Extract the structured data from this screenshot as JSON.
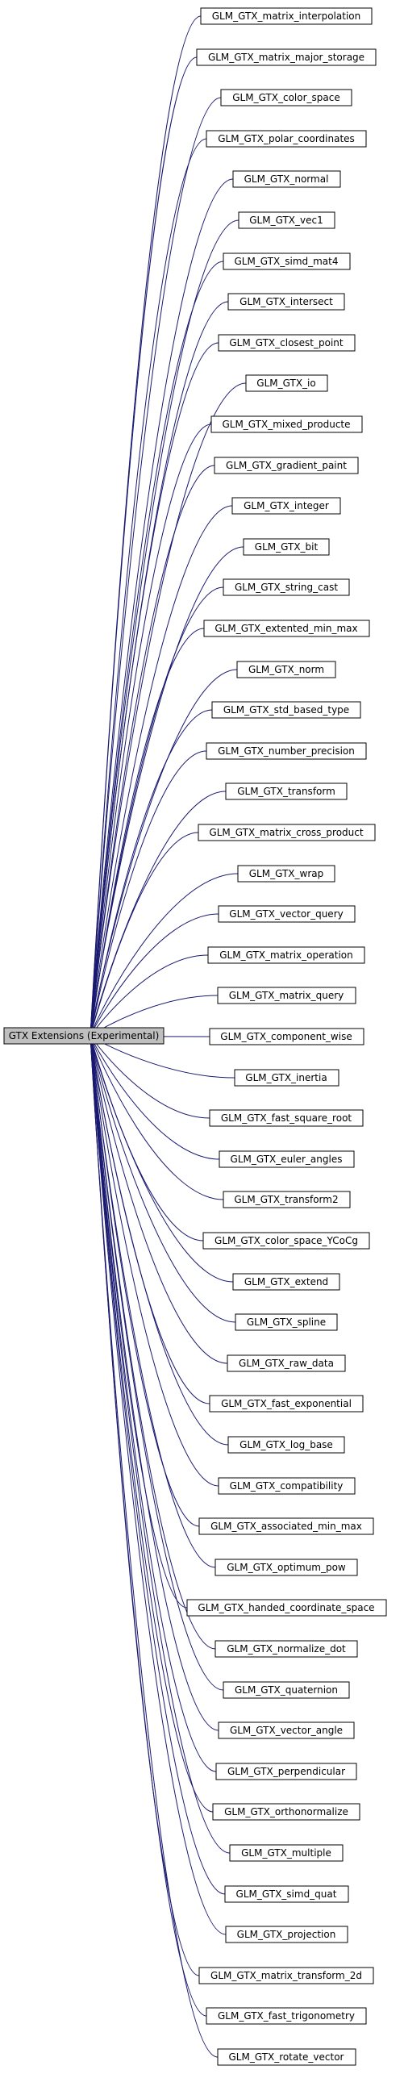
{
  "center": {
    "label": "GTX Extensions (Experimental)"
  },
  "colors": {
    "edge": "#191970",
    "arrow": "#191970",
    "center_fill": "#bfbfbf",
    "node_border": "#000000"
  },
  "nodes": [
    "GLM_GTX_matrix_interpolation",
    "GLM_GTX_matrix_major_storage",
    "GLM_GTX_color_space",
    "GLM_GTX_polar_coordinates",
    "GLM_GTX_normal",
    "GLM_GTX_vec1",
    "GLM_GTX_simd_mat4",
    "GLM_GTX_intersect",
    "GLM_GTX_closest_point",
    "GLM_GTX_io",
    "GLM_GTX_mixed_producte",
    "GLM_GTX_gradient_paint",
    "GLM_GTX_integer",
    "GLM_GTX_bit",
    "GLM_GTX_string_cast",
    "GLM_GTX_extented_min_max",
    "GLM_GTX_norm",
    "GLM_GTX_std_based_type",
    "GLM_GTX_number_precision",
    "GLM_GTX_transform",
    "GLM_GTX_matrix_cross_product",
    "GLM_GTX_wrap",
    "GLM_GTX_vector_query",
    "GLM_GTX_matrix_operation",
    "GLM_GTX_matrix_query",
    "GLM_GTX_component_wise",
    "GLM_GTX_inertia",
    "GLM_GTX_fast_square_root",
    "GLM_GTX_euler_angles",
    "GLM_GTX_transform2",
    "GLM_GTX_color_space_YCoCg",
    "GLM_GTX_extend",
    "GLM_GTX_spline",
    "GLM_GTX_raw_data",
    "GLM_GTX_fast_exponential",
    "GLM_GTX_log_base",
    "GLM_GTX_compatibility",
    "GLM_GTX_associated_min_max",
    "GLM_GTX_optimum_pow",
    "GLM_GTX_handed_coordinate_space",
    "GLM_GTX_normalize_dot",
    "GLM_GTX_quaternion",
    "GLM_GTX_vector_angle",
    "GLM_GTX_perpendicular",
    "GLM_GTX_orthonormalize",
    "GLM_GTX_multiple",
    "GLM_GTX_simd_quat",
    "GLM_GTX_projection",
    "GLM_GTX_matrix_transform_2d",
    "GLM_GTX_fast_trigonometry",
    "GLM_GTX_rotate_vector"
  ]
}
